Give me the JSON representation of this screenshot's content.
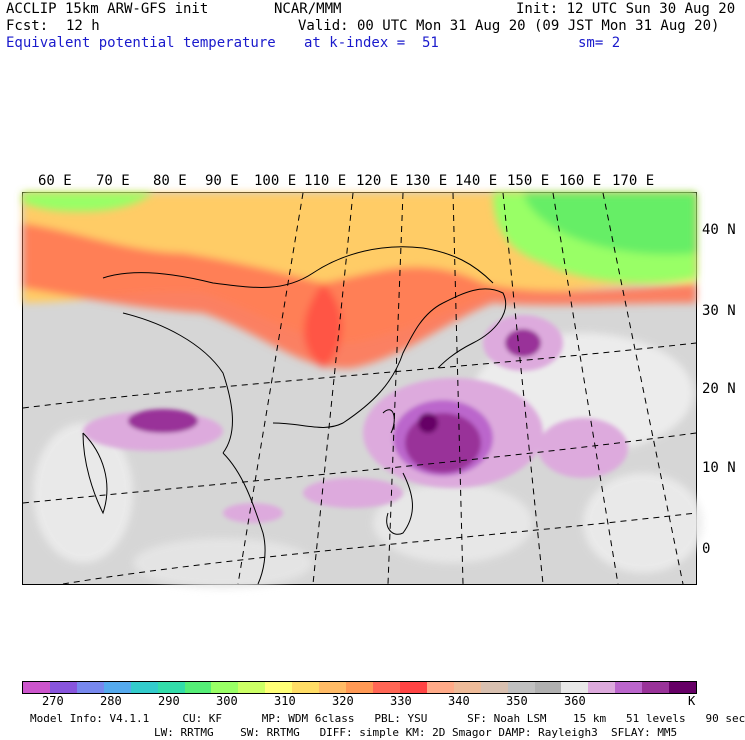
{
  "header": {
    "model": "ACCLIP 15km ARW-GFS init",
    "org": "NCAR/MMM",
    "init": "Init: 12 UTC Sun 30 Aug 20",
    "fcst_label": "Fcst:",
    "fcst_value": "12 h",
    "valid": "Valid: 00 UTC Mon 31 Aug 20 (09 JST Mon 31 Aug 20)",
    "field": "Equivalent potential temperature",
    "level": "at k-index =  51",
    "smooth": "sm= 2"
  },
  "map": {
    "lon_labels": [
      "60 E",
      "70 E",
      "80 E",
      "90 E",
      "100 E",
      "110 E",
      "120 E",
      "130 E",
      "140 E",
      "150 E",
      "160 E",
      "170 E"
    ],
    "lat_labels": [
      "40 N",
      "30 N",
      "20 N",
      "10 N",
      "0"
    ],
    "colors": {
      "ocean": "#d9d9d9",
      "land": "#b8b8b8",
      "cold": "#33ee33",
      "warm": "#ee4433",
      "moist": "#9933aa"
    }
  },
  "colorbar": {
    "colors": [
      "#cc55cc",
      "#8855dd",
      "#7788ee",
      "#55aaee",
      "#33cccc",
      "#33ddaa",
      "#55ee77",
      "#99ff66",
      "#ccff66",
      "#ffff77",
      "#ffdd66",
      "#ffbb66",
      "#ff9955",
      "#ff6655",
      "#ff4444",
      "#ffaa88",
      "#eebb99",
      "#d8c0b0",
      "#c0c0c0",
      "#b0b0b0",
      "#e8e8e8",
      "#ddaadd",
      "#bb66cc",
      "#993399",
      "#660066"
    ],
    "ticks": [
      "270",
      "280",
      "290",
      "300",
      "310",
      "320",
      "330",
      "340",
      "350",
      "360"
    ],
    "unit": "K"
  },
  "footer": {
    "line1": "Model Info: V4.1.1     CU: KF      MP: WDM 6class   PBL: YSU      SF: Noah LSM    15 km   51 levels   90 sec",
    "line2": "LW: RRTMG    SW: RRTMG   DIFF: simple KM: 2D Smagor DAMP: Rayleigh3  SFLAY: MM5"
  }
}
